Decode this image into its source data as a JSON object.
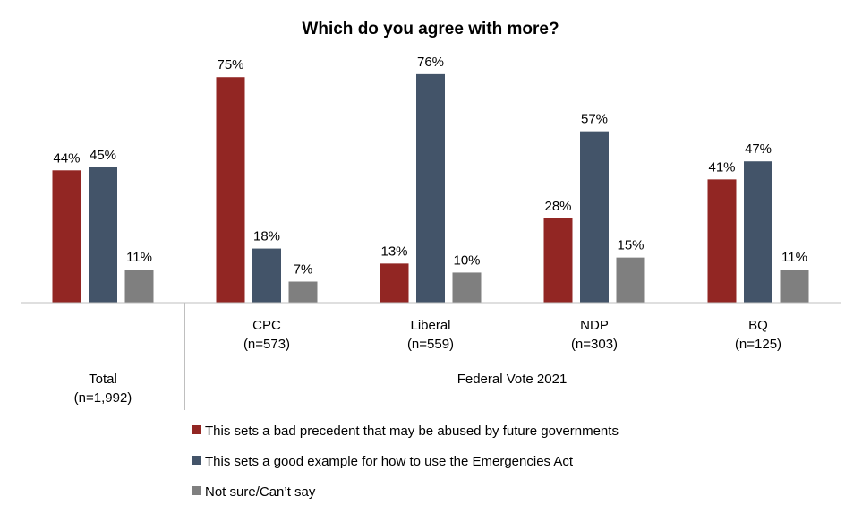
{
  "chart_data": {
    "type": "bar",
    "title": "Which do you agree with more?",
    "groups": [
      {
        "label": "Total",
        "sub": "(n=1,992)"
      },
      {
        "label": "CPC",
        "sub": "(n=573)"
      },
      {
        "label": "Liberal",
        "sub": "(n=559)"
      },
      {
        "label": "NDP",
        "sub": "(n=303)"
      },
      {
        "label": "BQ",
        "sub": "(n=125)"
      }
    ],
    "group_header": "Federal Vote 2021",
    "series": [
      {
        "name": "This sets a bad precedent that may be abused by future governments",
        "color": "#922623",
        "values": [
          44,
          75,
          13,
          28,
          41
        ]
      },
      {
        "name": "This sets a good example for how to use the Emergencies Act",
        "color": "#435469",
        "values": [
          45,
          18,
          76,
          57,
          47
        ]
      },
      {
        "name": "Not sure/Can’t say",
        "color": "#7f7f7f",
        "values": [
          11,
          7,
          10,
          15,
          11
        ]
      }
    ],
    "value_suffix": "%",
    "ylim": [
      0,
      100
    ],
    "legend_position": "bottom",
    "grid": false
  }
}
